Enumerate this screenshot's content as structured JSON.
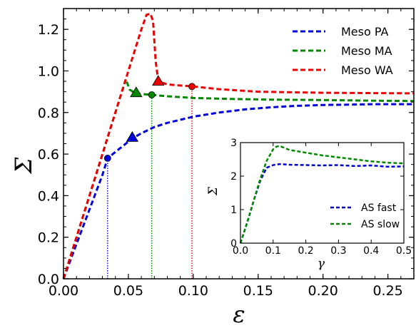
{
  "chart_data": [
    {
      "type": "line",
      "xlabel": "ε",
      "ylabel": "Σ",
      "xlim": [
        0,
        0.27
      ],
      "ylim": [
        0,
        1.3
      ],
      "xticks": [
        0.0,
        0.05,
        0.1,
        0.15,
        0.2,
        0.25
      ],
      "xtick_labels": [
        "0.00",
        "0.05",
        "0.10",
        "0.15",
        "0.20",
        "0.25"
      ],
      "yticks": [
        0.0,
        0.2,
        0.4,
        0.6,
        0.8,
        1.0,
        1.2
      ],
      "ytick_labels": [
        "0.0",
        "0.2",
        "0.4",
        "0.6",
        "0.8",
        "1.0",
        "1.2"
      ],
      "grid": false,
      "legend": "top-right",
      "series": [
        {
          "name": "Meso PA",
          "color": "#0000dd",
          "x": [
            0.0,
            0.01,
            0.02,
            0.03,
            0.034,
            0.04,
            0.05,
            0.053,
            0.06,
            0.07,
            0.08,
            0.09,
            0.1,
            0.12,
            0.14,
            0.16,
            0.18,
            0.2,
            0.22,
            0.24,
            0.27
          ],
          "y": [
            0.0,
            0.167,
            0.333,
            0.5,
            0.58,
            0.61,
            0.66,
            0.675,
            0.7,
            0.73,
            0.75,
            0.765,
            0.78,
            0.8,
            0.815,
            0.825,
            0.832,
            0.836,
            0.838,
            0.84,
            0.84
          ]
        },
        {
          "name": "Meso MA",
          "color": "#008800",
          "x": [
            0.0,
            0.01,
            0.02,
            0.03,
            0.04,
            0.045,
            0.048,
            0.051,
            0.056,
            0.062,
            0.068,
            0.08,
            0.1,
            0.13,
            0.16,
            0.2,
            0.24,
            0.27
          ],
          "y": [
            0.0,
            0.2,
            0.4,
            0.6,
            0.8,
            0.9,
            0.96,
            0.91,
            0.89,
            0.888,
            0.885,
            0.878,
            0.87,
            0.865,
            0.862,
            0.86,
            0.857,
            0.855
          ]
        },
        {
          "name": "Meso WA",
          "color": "#ee0000",
          "x": [
            0.0,
            0.01,
            0.02,
            0.03,
            0.04,
            0.05,
            0.06,
            0.064,
            0.067,
            0.069,
            0.071,
            0.073,
            0.08,
            0.09,
            0.1,
            0.12,
            0.15,
            0.2,
            0.25,
            0.27
          ],
          "y": [
            0.0,
            0.2,
            0.4,
            0.6,
            0.8,
            1.0,
            1.2,
            1.27,
            1.275,
            1.24,
            1.05,
            0.95,
            0.935,
            0.93,
            0.925,
            0.912,
            0.9,
            0.895,
            0.893,
            0.892
          ]
        }
      ],
      "markers": [
        {
          "series": "Meso PA",
          "shape": "circle",
          "x": 0.034,
          "y": 0.58,
          "color": "#0000dd"
        },
        {
          "series": "Meso PA",
          "shape": "triangle",
          "x": 0.053,
          "y": 0.68,
          "color": "#0000dd"
        },
        {
          "series": "Meso MA",
          "shape": "triangle",
          "x": 0.056,
          "y": 0.895,
          "color": "#008800"
        },
        {
          "series": "Meso MA",
          "shape": "circle",
          "x": 0.068,
          "y": 0.885,
          "color": "#008800"
        },
        {
          "series": "Meso WA",
          "shape": "triangle",
          "x": 0.073,
          "y": 0.95,
          "color": "#ee0000"
        },
        {
          "series": "Meso WA",
          "shape": "circle",
          "x": 0.099,
          "y": 0.925,
          "color": "#ee0000"
        }
      ],
      "vlines": [
        {
          "x": 0.034,
          "y_top": 0.58,
          "color": "#0000dd"
        },
        {
          "x": 0.068,
          "y_top": 0.885,
          "color": "#008800"
        },
        {
          "x": 0.099,
          "y_top": 0.925,
          "color": "#ee0000"
        }
      ]
    },
    {
      "type": "line",
      "xlabel": "γ",
      "ylabel": "Σ",
      "xlim": [
        0,
        0.5
      ],
      "ylim": [
        0,
        3
      ],
      "xticks": [
        0.0,
        0.1,
        0.2,
        0.3,
        0.4,
        0.5
      ],
      "xtick_labels": [
        "0.0",
        "0.1",
        "0.2",
        "0.3",
        "0.4",
        "0.5"
      ],
      "yticks": [
        0,
        1,
        2,
        3
      ],
      "ytick_labels": [
        "0",
        "1",
        "2",
        "3"
      ],
      "grid": false,
      "legend": "bottom-right",
      "series": [
        {
          "name": "AS fast",
          "color": "#0000dd",
          "x": [
            0.0,
            0.02,
            0.04,
            0.06,
            0.08,
            0.1,
            0.12,
            0.15,
            0.2,
            0.25,
            0.3,
            0.35,
            0.4,
            0.45,
            0.5
          ],
          "y": [
            0.0,
            0.6,
            1.25,
            1.85,
            2.25,
            2.33,
            2.36,
            2.34,
            2.33,
            2.32,
            2.33,
            2.3,
            2.32,
            2.28,
            2.29
          ]
        },
        {
          "name": "AS slow",
          "color": "#008800",
          "x": [
            0.0,
            0.02,
            0.04,
            0.06,
            0.08,
            0.1,
            0.11,
            0.12,
            0.15,
            0.2,
            0.25,
            0.3,
            0.35,
            0.4,
            0.45,
            0.5
          ],
          "y": [
            0.0,
            0.6,
            1.25,
            1.9,
            2.45,
            2.8,
            2.88,
            2.9,
            2.78,
            2.7,
            2.62,
            2.56,
            2.5,
            2.44,
            2.4,
            2.38
          ]
        }
      ]
    }
  ]
}
